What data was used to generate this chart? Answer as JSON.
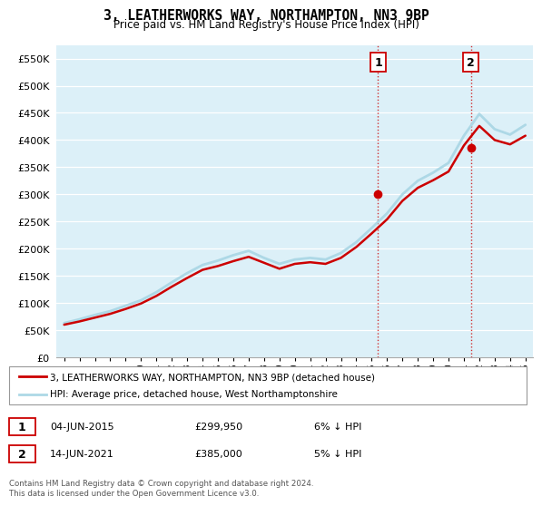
{
  "title": "3, LEATHERWORKS WAY, NORTHAMPTON, NN3 9BP",
  "subtitle": "Price paid vs. HM Land Registry's House Price Index (HPI)",
  "hpi_years": [
    1995,
    1996,
    1997,
    1998,
    1999,
    2000,
    2001,
    2002,
    2003,
    2004,
    2005,
    2006,
    2007,
    2008,
    2009,
    2010,
    2011,
    2012,
    2013,
    2014,
    2015,
    2016,
    2017,
    2018,
    2019,
    2020,
    2021,
    2022,
    2023,
    2024,
    2025
  ],
  "hpi_values": [
    63000,
    70000,
    78000,
    85000,
    95000,
    105000,
    120000,
    138000,
    155000,
    170000,
    178000,
    188000,
    196000,
    183000,
    172000,
    180000,
    183000,
    180000,
    192000,
    212000,
    238000,
    265000,
    300000,
    325000,
    340000,
    358000,
    408000,
    448000,
    420000,
    410000,
    428000
  ],
  "price_years": [
    1995,
    1996,
    1997,
    1998,
    1999,
    2000,
    2001,
    2002,
    2003,
    2004,
    2005,
    2006,
    2007,
    2008,
    2009,
    2010,
    2011,
    2012,
    2013,
    2014,
    2015,
    2016,
    2017,
    2018,
    2019,
    2020,
    2021,
    2022,
    2023,
    2024,
    2025
  ],
  "price_values": [
    60000,
    66000,
    73000,
    80000,
    89000,
    99000,
    113000,
    130000,
    146000,
    161000,
    168000,
    177000,
    185000,
    174000,
    163000,
    172000,
    175000,
    172000,
    183000,
    203000,
    228000,
    254000,
    288000,
    312000,
    326000,
    342000,
    390000,
    426000,
    400000,
    392000,
    408000
  ],
  "sale1_x": 2015.42,
  "sale1_y": 299950,
  "sale2_x": 2021.45,
  "sale2_y": 385000,
  "vline1_x": 2015.42,
  "vline2_x": 2021.45,
  "ylim": [
    0,
    575000
  ],
  "xlim_left": 1994.5,
  "xlim_right": 2025.5,
  "yticks": [
    0,
    50000,
    100000,
    150000,
    200000,
    250000,
    300000,
    350000,
    400000,
    450000,
    500000,
    550000
  ],
  "ytick_labels": [
    "£0",
    "£50K",
    "£100K",
    "£150K",
    "£200K",
    "£250K",
    "£300K",
    "£350K",
    "£400K",
    "£450K",
    "£500K",
    "£550K"
  ],
  "xticks": [
    1995,
    1996,
    1997,
    1998,
    1999,
    2000,
    2001,
    2002,
    2003,
    2004,
    2005,
    2006,
    2007,
    2008,
    2009,
    2010,
    2011,
    2012,
    2013,
    2014,
    2015,
    2016,
    2017,
    2018,
    2019,
    2020,
    2021,
    2022,
    2023,
    2024,
    2025
  ],
  "hpi_color": "#ADD8E6",
  "price_color": "#CC0000",
  "vline_color": "#CC0000",
  "sale_dot_color": "#CC0000",
  "bg_color": "#DCF0F8",
  "grid_color": "#FFFFFF",
  "legend_line1": "3, LEATHERWORKS WAY, NORTHAMPTON, NN3 9BP (detached house)",
  "legend_line2": "HPI: Average price, detached house, West Northamptonshire",
  "annotation1_label": "1",
  "annotation2_label": "2",
  "table_row1": [
    "1",
    "04-JUN-2015",
    "£299,950",
    "6% ↓ HPI"
  ],
  "table_row2": [
    "2",
    "14-JUN-2021",
    "£385,000",
    "5% ↓ HPI"
  ],
  "footnote": "Contains HM Land Registry data © Crown copyright and database right 2024.\nThis data is licensed under the Open Government Licence v3.0."
}
